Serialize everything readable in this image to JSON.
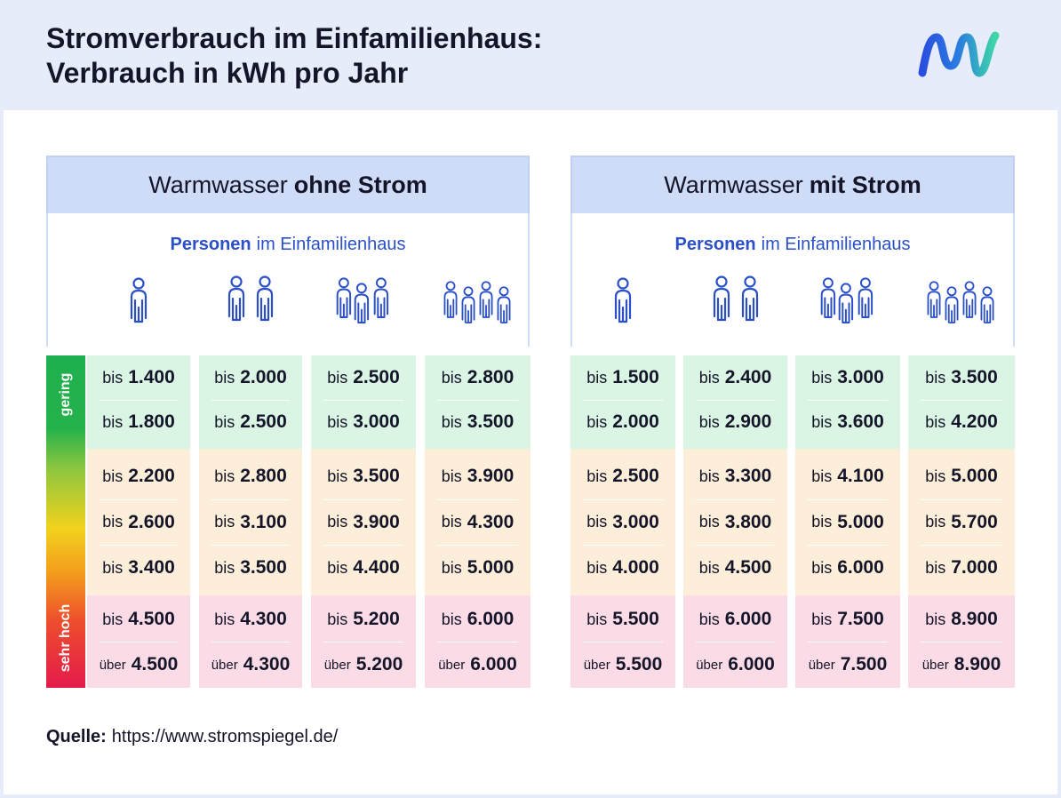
{
  "title": {
    "line1": "Stromverbrauch im Einfamilienhaus:",
    "line2": "Verbrauch in kWh pro Jahr"
  },
  "colors": {
    "header_bg": "#e6ecfa",
    "accent_blue": "#2a4fc7",
    "band_green": "#daf5e3",
    "band_orange": "#fdeed9",
    "band_red": "#fbdbe5"
  },
  "scale": {
    "low_label": "gering",
    "high_label": "sehr hoch"
  },
  "persons_label": {
    "bold": "Personen",
    "rest": "im Einfamilienhaus"
  },
  "row_prefix": {
    "bis": "bis",
    "ueber": "über"
  },
  "source": {
    "label": "Quelle:",
    "url": "https://www.stromspiegel.de/"
  },
  "chart_data": [
    {
      "type": "table",
      "title_regular": "Warmwasser",
      "title_bold": "ohne Strom",
      "columns": [
        "1",
        "2",
        "3",
        "4"
      ],
      "column_person_counts": [
        1,
        2,
        3,
        4
      ],
      "row_bands": [
        "green",
        "green",
        "orange",
        "orange",
        "orange",
        "red",
        "red"
      ],
      "row_prefixes": [
        "bis",
        "bis",
        "bis",
        "bis",
        "bis",
        "bis",
        "über"
      ],
      "values": [
        [
          "1.400",
          "1.800",
          "2.200",
          "2.600",
          "3.400",
          "4.500",
          "4.500"
        ],
        [
          "2.000",
          "2.500",
          "2.800",
          "3.100",
          "3.500",
          "4.300",
          "4.300"
        ],
        [
          "2.500",
          "3.000",
          "3.500",
          "3.900",
          "4.400",
          "5.200",
          "5.200"
        ],
        [
          "2.800",
          "3.500",
          "3.900",
          "4.300",
          "5.000",
          "6.000",
          "6.000"
        ]
      ]
    },
    {
      "type": "table",
      "title_regular": "Warmwasser",
      "title_bold": "mit Strom",
      "columns": [
        "1",
        "2",
        "3",
        "4"
      ],
      "column_person_counts": [
        1,
        2,
        3,
        4
      ],
      "row_bands": [
        "green",
        "green",
        "orange",
        "orange",
        "orange",
        "red",
        "red"
      ],
      "row_prefixes": [
        "bis",
        "bis",
        "bis",
        "bis",
        "bis",
        "bis",
        "über"
      ],
      "values": [
        [
          "1.500",
          "2.000",
          "2.500",
          "3.000",
          "4.000",
          "5.500",
          "5.500"
        ],
        [
          "2.400",
          "2.900",
          "3.300",
          "3.800",
          "4.500",
          "6.000",
          "6.000"
        ],
        [
          "3.000",
          "3.600",
          "4.100",
          "5.000",
          "6.000",
          "7.500",
          "7.500"
        ],
        [
          "3.500",
          "4.200",
          "5.000",
          "5.700",
          "7.000",
          "8.900",
          "8.900"
        ]
      ]
    }
  ]
}
